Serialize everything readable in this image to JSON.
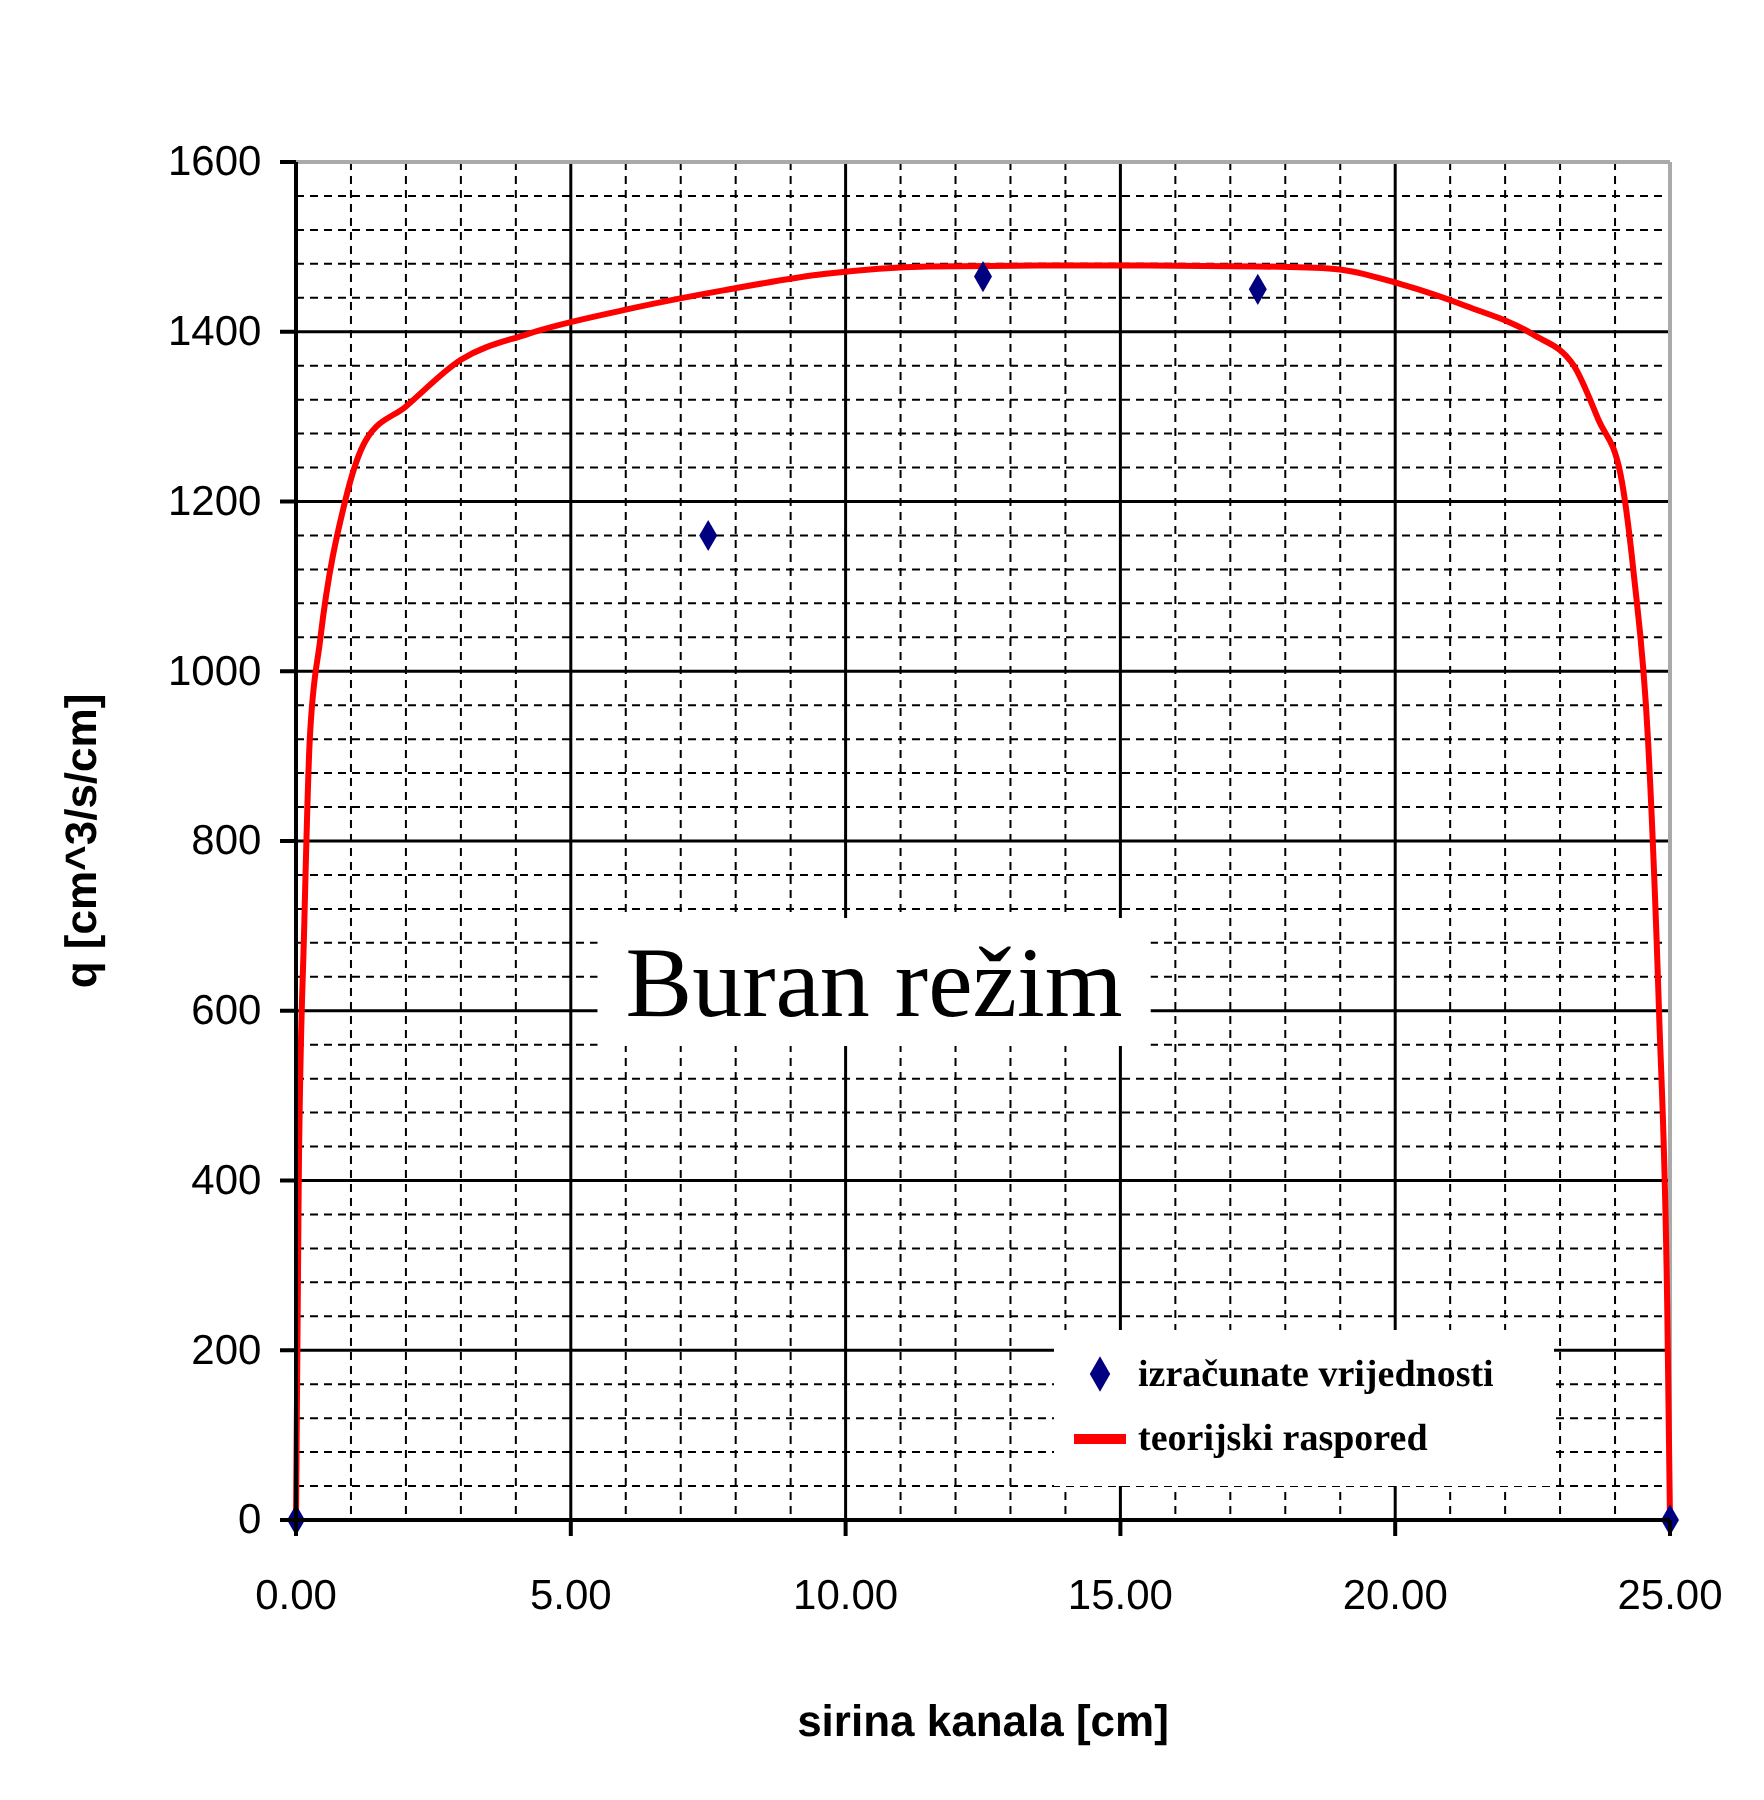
{
  "chart_data": {
    "type": "scatter",
    "xlabel": "sirina kanala [cm]",
    "ylabel": "q [cm^3/s/cm]",
    "annotations": [
      "Buran režim"
    ],
    "xlim": [
      0,
      25
    ],
    "ylim": [
      0,
      1600
    ],
    "xticks": [
      {
        "value": 0,
        "label": "0.00"
      },
      {
        "value": 1,
        "label": null
      },
      {
        "value": 2,
        "label": null
      },
      {
        "value": 3,
        "label": null
      },
      {
        "value": 4,
        "label": null
      },
      {
        "value": 5,
        "label": "5.00"
      },
      {
        "value": 6,
        "label": null
      },
      {
        "value": 7,
        "label": null
      },
      {
        "value": 8,
        "label": null
      },
      {
        "value": 9,
        "label": null
      },
      {
        "value": 10,
        "label": "10.00"
      },
      {
        "value": 11,
        "label": null
      },
      {
        "value": 12,
        "label": null
      },
      {
        "value": 13,
        "label": null
      },
      {
        "value": 14,
        "label": null
      },
      {
        "value": 15,
        "label": "15.00"
      },
      {
        "value": 16,
        "label": null
      },
      {
        "value": 17,
        "label": null
      },
      {
        "value": 18,
        "label": null
      },
      {
        "value": 19,
        "label": null
      },
      {
        "value": 20,
        "label": "20.00"
      },
      {
        "value": 21,
        "label": null
      },
      {
        "value": 22,
        "label": null
      },
      {
        "value": 23,
        "label": null
      },
      {
        "value": 24,
        "label": null
      },
      {
        "value": 25,
        "label": "25.00"
      }
    ],
    "yticks": [
      0,
      {
        "value": 40,
        "label": null
      },
      {
        "value": 80,
        "label": null
      },
      {
        "value": 120,
        "label": null
      },
      {
        "value": 160,
        "label": null
      },
      200,
      {
        "value": 240,
        "label": null
      },
      {
        "value": 280,
        "label": null
      },
      {
        "value": 320,
        "label": null
      },
      {
        "value": 360,
        "label": null
      },
      400,
      {
        "value": 440,
        "label": null
      },
      {
        "value": 480,
        "label": null
      },
      {
        "value": 520,
        "label": null
      },
      {
        "value": 560,
        "label": null
      },
      600,
      {
        "value": 640,
        "label": null
      },
      {
        "value": 680,
        "label": null
      },
      {
        "value": 720,
        "label": null
      },
      {
        "value": 760,
        "label": null
      },
      800,
      {
        "value": 840,
        "label": null
      },
      {
        "value": 880,
        "label": null
      },
      {
        "value": 920,
        "label": null
      },
      {
        "value": 960,
        "label": null
      },
      1000,
      {
        "value": 1040,
        "label": null
      },
      {
        "value": 1080,
        "label": null
      },
      {
        "value": 1120,
        "label": null
      },
      {
        "value": 1160,
        "label": null
      },
      1200,
      {
        "value": 1240,
        "label": null
      },
      {
        "value": 1280,
        "label": null
      },
      {
        "value": 1320,
        "label": null
      },
      {
        "value": 1360,
        "label": null
      },
      1400,
      {
        "value": 1440,
        "label": null
      },
      {
        "value": 1480,
        "label": null
      },
      {
        "value": 1520,
        "label": null
      },
      {
        "value": 1560,
        "label": null
      },
      1600
    ],
    "grid": true,
    "legend": "bottom right",
    "series": [
      {
        "name": "izračunate vrijednosti",
        "marker": "diamond",
        "color": "#000080",
        "x": [
          0,
          7.5,
          12.5,
          17.5,
          25
        ],
        "values": [
          0,
          1160,
          1465,
          1450,
          0
        ]
      },
      {
        "name": "teorijski raspored",
        "type": "line",
        "marker": "none",
        "line_style": "solid",
        "color": "#ff0000",
        "x": [
          0,
          0.05,
          0.15,
          0.25,
          0.44,
          0.9,
          1.27,
          2.0,
          3.0,
          4.2,
          6.0,
          7.8,
          9.6,
          11.5,
          13.5,
          15.5,
          17.5,
          18.9,
          20.1,
          21.3,
          22.5,
          23.25,
          23.7,
          24.1,
          24.34,
          24.6,
          24.8,
          24.95,
          25
        ],
        "values": [
          0,
          400,
          700,
          919,
          1037,
          1202,
          1272,
          1312,
          1367,
          1397,
          1426,
          1449,
          1468,
          1477,
          1478,
          1478,
          1477,
          1474,
          1456,
          1430,
          1397,
          1360,
          1296,
          1232,
          1115,
          919,
          600,
          250,
          0
        ]
      }
    ]
  }
}
